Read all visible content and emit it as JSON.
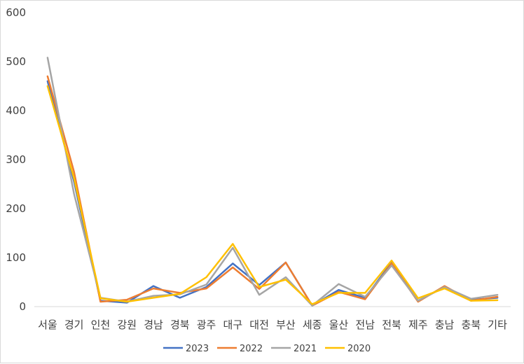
{
  "chart_data": {
    "type": "line",
    "title": "",
    "xlabel": "",
    "ylabel": "",
    "ylim": [
      0,
      600
    ],
    "yticks": [
      0,
      100,
      200,
      300,
      400,
      500,
      600
    ],
    "grid": false,
    "legend_position": "bottom",
    "categories": [
      "서울",
      "경기",
      "인천",
      "강원",
      "경남",
      "경북",
      "광주",
      "대구",
      "대전",
      "부산",
      "세종",
      "울산",
      "전남",
      "전북",
      "제주",
      "충남",
      "충북",
      "기타"
    ],
    "series": [
      {
        "name": "2023",
        "color": "#4472C4",
        "values": [
          460,
          255,
          12,
          8,
          42,
          18,
          40,
          88,
          44,
          90,
          2,
          34,
          18,
          90,
          12,
          40,
          14,
          18
        ]
      },
      {
        "name": "2022",
        "color": "#ED7D31",
        "values": [
          470,
          275,
          10,
          14,
          37,
          28,
          37,
          80,
          36,
          90,
          2,
          30,
          15,
          88,
          10,
          42,
          12,
          20
        ]
      },
      {
        "name": "2021",
        "color": "#A5A5A5",
        "values": [
          508,
          230,
          18,
          10,
          22,
          25,
          45,
          120,
          24,
          60,
          2,
          46,
          20,
          84,
          12,
          40,
          16,
          24
        ]
      },
      {
        "name": "2020",
        "color": "#FFC000",
        "values": [
          450,
          262,
          17,
          10,
          18,
          26,
          60,
          128,
          40,
          55,
          5,
          28,
          28,
          94,
          17,
          37,
          12,
          13
        ]
      }
    ]
  }
}
